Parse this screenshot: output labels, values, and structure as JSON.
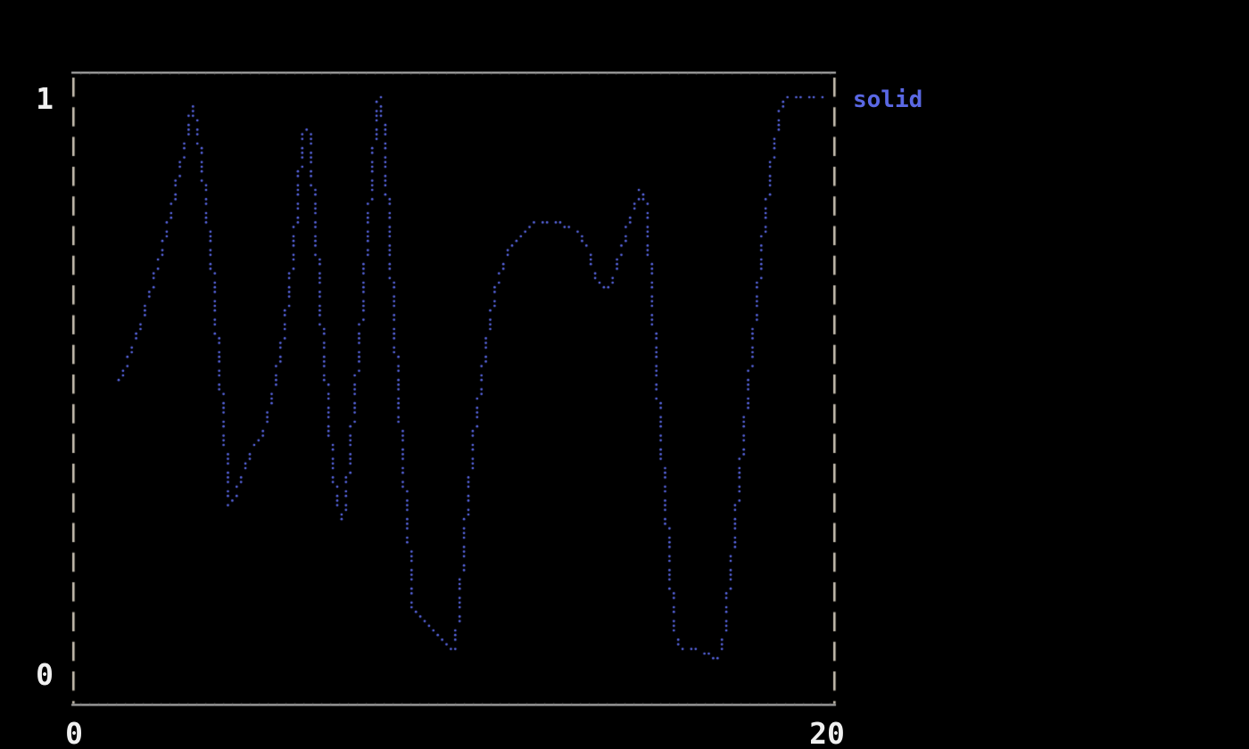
{
  "screen": {
    "background": "#000000"
  },
  "chart_data": {
    "type": "line",
    "title": "",
    "marker": "braille-dot",
    "grid": false,
    "frame": {
      "top_bottom_style": "solid",
      "left_right_style": "dashed",
      "solid_color": "#c2c2c2",
      "dashed_color": "#c9c1b2",
      "notch_color": "#6f6f6f"
    },
    "xlim": [
      0,
      20
    ],
    "ylim": [
      0,
      1
    ],
    "x_ticks": [
      {
        "label": "0",
        "value": 0
      },
      {
        "label": "20",
        "value": 20
      }
    ],
    "y_ticks": [
      {
        "label": "0",
        "value": 0
      },
      {
        "label": "1",
        "value": 1
      }
    ],
    "legend_position": "outside-top-right",
    "series": [
      {
        "name": "solid",
        "color": "#5a68e6",
        "points": [
          [
            1.2,
            0.509
          ],
          [
            1.55,
            0.56
          ],
          [
            1.9,
            0.637
          ],
          [
            2.25,
            0.713
          ],
          [
            2.6,
            0.81
          ],
          [
            2.91,
            0.908
          ],
          [
            3.07,
            0.963
          ],
          [
            3.14,
            0.986
          ],
          [
            3.33,
            0.913
          ],
          [
            3.52,
            0.798
          ],
          [
            3.68,
            0.683
          ],
          [
            3.84,
            0.537
          ],
          [
            3.98,
            0.414
          ],
          [
            4.08,
            0.337
          ],
          [
            4.12,
            0.299
          ],
          [
            4.29,
            0.311
          ],
          [
            4.43,
            0.348
          ],
          [
            4.59,
            0.374
          ],
          [
            4.76,
            0.4
          ],
          [
            4.92,
            0.416
          ],
          [
            5.06,
            0.433
          ],
          [
            5.18,
            0.471
          ],
          [
            5.3,
            0.509
          ],
          [
            5.44,
            0.56
          ],
          [
            5.6,
            0.626
          ],
          [
            5.74,
            0.706
          ],
          [
            5.86,
            0.782
          ],
          [
            5.95,
            0.867
          ],
          [
            6.02,
            0.933
          ],
          [
            6.09,
            0.946
          ],
          [
            6.19,
            0.942
          ],
          [
            6.28,
            0.874
          ],
          [
            6.37,
            0.775
          ],
          [
            6.47,
            0.675
          ],
          [
            6.56,
            0.575
          ],
          [
            6.68,
            0.475
          ],
          [
            6.8,
            0.383
          ],
          [
            6.89,
            0.325
          ],
          [
            6.98,
            0.287
          ],
          [
            7.08,
            0.27
          ],
          [
            7.19,
            0.33
          ],
          [
            7.31,
            0.414
          ],
          [
            7.43,
            0.506
          ],
          [
            7.55,
            0.598
          ],
          [
            7.66,
            0.698
          ],
          [
            7.78,
            0.798
          ],
          [
            7.87,
            0.89
          ],
          [
            7.97,
            0.958
          ],
          [
            8.04,
            0.998
          ],
          [
            8.13,
            0.974
          ],
          [
            8.22,
            0.867
          ],
          [
            8.32,
            0.752
          ],
          [
            8.41,
            0.637
          ],
          [
            8.51,
            0.521
          ],
          [
            8.6,
            0.429
          ],
          [
            8.69,
            0.345
          ],
          [
            8.79,
            0.261
          ],
          [
            8.88,
            0.176
          ],
          [
            8.95,
            0.115
          ],
          [
            9.09,
            0.101
          ],
          [
            9.28,
            0.09
          ],
          [
            9.47,
            0.08
          ],
          [
            9.66,
            0.067
          ],
          [
            9.82,
            0.057
          ],
          [
            9.96,
            0.046
          ],
          [
            10.05,
            0.067
          ],
          [
            10.15,
            0.13
          ],
          [
            10.22,
            0.192
          ],
          [
            10.31,
            0.261
          ],
          [
            10.4,
            0.33
          ],
          [
            10.52,
            0.406
          ],
          [
            10.64,
            0.472
          ],
          [
            10.78,
            0.54
          ],
          [
            10.92,
            0.601
          ],
          [
            11.06,
            0.656
          ],
          [
            11.22,
            0.698
          ],
          [
            11.41,
            0.729
          ],
          [
            11.62,
            0.753
          ],
          [
            11.86,
            0.77
          ],
          [
            12.11,
            0.781
          ],
          [
            12.4,
            0.787
          ],
          [
            12.68,
            0.787
          ],
          [
            12.93,
            0.779
          ],
          [
            13.17,
            0.768
          ],
          [
            13.36,
            0.755
          ],
          [
            13.52,
            0.735
          ],
          [
            13.66,
            0.707
          ],
          [
            13.78,
            0.684
          ],
          [
            13.92,
            0.669
          ],
          [
            14.04,
            0.666
          ],
          [
            14.18,
            0.69
          ],
          [
            14.34,
            0.721
          ],
          [
            14.5,
            0.758
          ],
          [
            14.67,
            0.795
          ],
          [
            14.81,
            0.825
          ],
          [
            14.93,
            0.839
          ],
          [
            15.02,
            0.825
          ],
          [
            15.11,
            0.752
          ],
          [
            15.21,
            0.652
          ],
          [
            15.3,
            0.552
          ],
          [
            15.4,
            0.46
          ],
          [
            15.49,
            0.368
          ],
          [
            15.58,
            0.279
          ],
          [
            15.68,
            0.19
          ],
          [
            15.77,
            0.107
          ],
          [
            15.84,
            0.066
          ],
          [
            15.98,
            0.055
          ],
          [
            16.17,
            0.049
          ],
          [
            16.38,
            0.046
          ],
          [
            16.59,
            0.043
          ],
          [
            16.78,
            0.038
          ],
          [
            16.92,
            0.032
          ],
          [
            17.03,
            0.049
          ],
          [
            17.13,
            0.092
          ],
          [
            17.22,
            0.15
          ],
          [
            17.32,
            0.212
          ],
          [
            17.41,
            0.276
          ],
          [
            17.5,
            0.341
          ],
          [
            17.6,
            0.403
          ],
          [
            17.69,
            0.468
          ],
          [
            17.78,
            0.532
          ],
          [
            17.88,
            0.595
          ],
          [
            17.97,
            0.66
          ],
          [
            18.07,
            0.722
          ],
          [
            18.16,
            0.785
          ],
          [
            18.28,
            0.847
          ],
          [
            18.39,
            0.902
          ],
          [
            18.51,
            0.951
          ],
          [
            18.63,
            0.986
          ],
          [
            18.72,
            0.998
          ],
          [
            18.82,
            1.0
          ],
          [
            19.8,
            1.0
          ]
        ]
      }
    ]
  }
}
